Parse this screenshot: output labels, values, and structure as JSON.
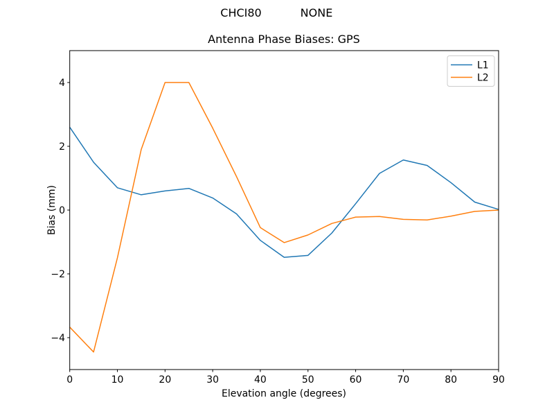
{
  "figure": {
    "suptitle_left": "CHCI80",
    "suptitle_right": "NONE",
    "background_color": "#ffffff",
    "text_color": "#000000"
  },
  "chart_data": {
    "type": "line",
    "title": "Antenna Phase Biases: GPS",
    "xlabel": "Elevation angle (degrees)",
    "ylabel": "Bias (mm)",
    "xlim": [
      0,
      90
    ],
    "ylim": [
      -5,
      5
    ],
    "xticks": [
      0,
      10,
      20,
      30,
      40,
      50,
      60,
      70,
      80,
      90
    ],
    "yticks": [
      -4,
      -2,
      0,
      2,
      4
    ],
    "ytick_labels": [
      "−4",
      "−2",
      "0",
      "2",
      "4"
    ],
    "grid": false,
    "legend_position": "upper right",
    "x": [
      0,
      5,
      10,
      15,
      20,
      25,
      30,
      35,
      40,
      45,
      50,
      55,
      60,
      65,
      70,
      75,
      80,
      85,
      90
    ],
    "series": [
      {
        "name": "L1",
        "color": "#1f77b4",
        "values": [
          2.6,
          1.5,
          0.7,
          0.48,
          0.6,
          0.68,
          0.38,
          -0.12,
          -0.95,
          -1.48,
          -1.42,
          -0.72,
          0.2,
          1.15,
          1.57,
          1.4,
          0.86,
          0.25,
          0.02
        ]
      },
      {
        "name": "L2",
        "color": "#ff7f0e",
        "values": [
          -3.67,
          -4.45,
          -1.5,
          1.9,
          4.0,
          4.0,
          2.57,
          1.05,
          -0.55,
          -1.02,
          -0.78,
          -0.42,
          -0.22,
          -0.2,
          -0.29,
          -0.31,
          -0.19,
          -0.04,
          0.0
        ]
      }
    ]
  }
}
